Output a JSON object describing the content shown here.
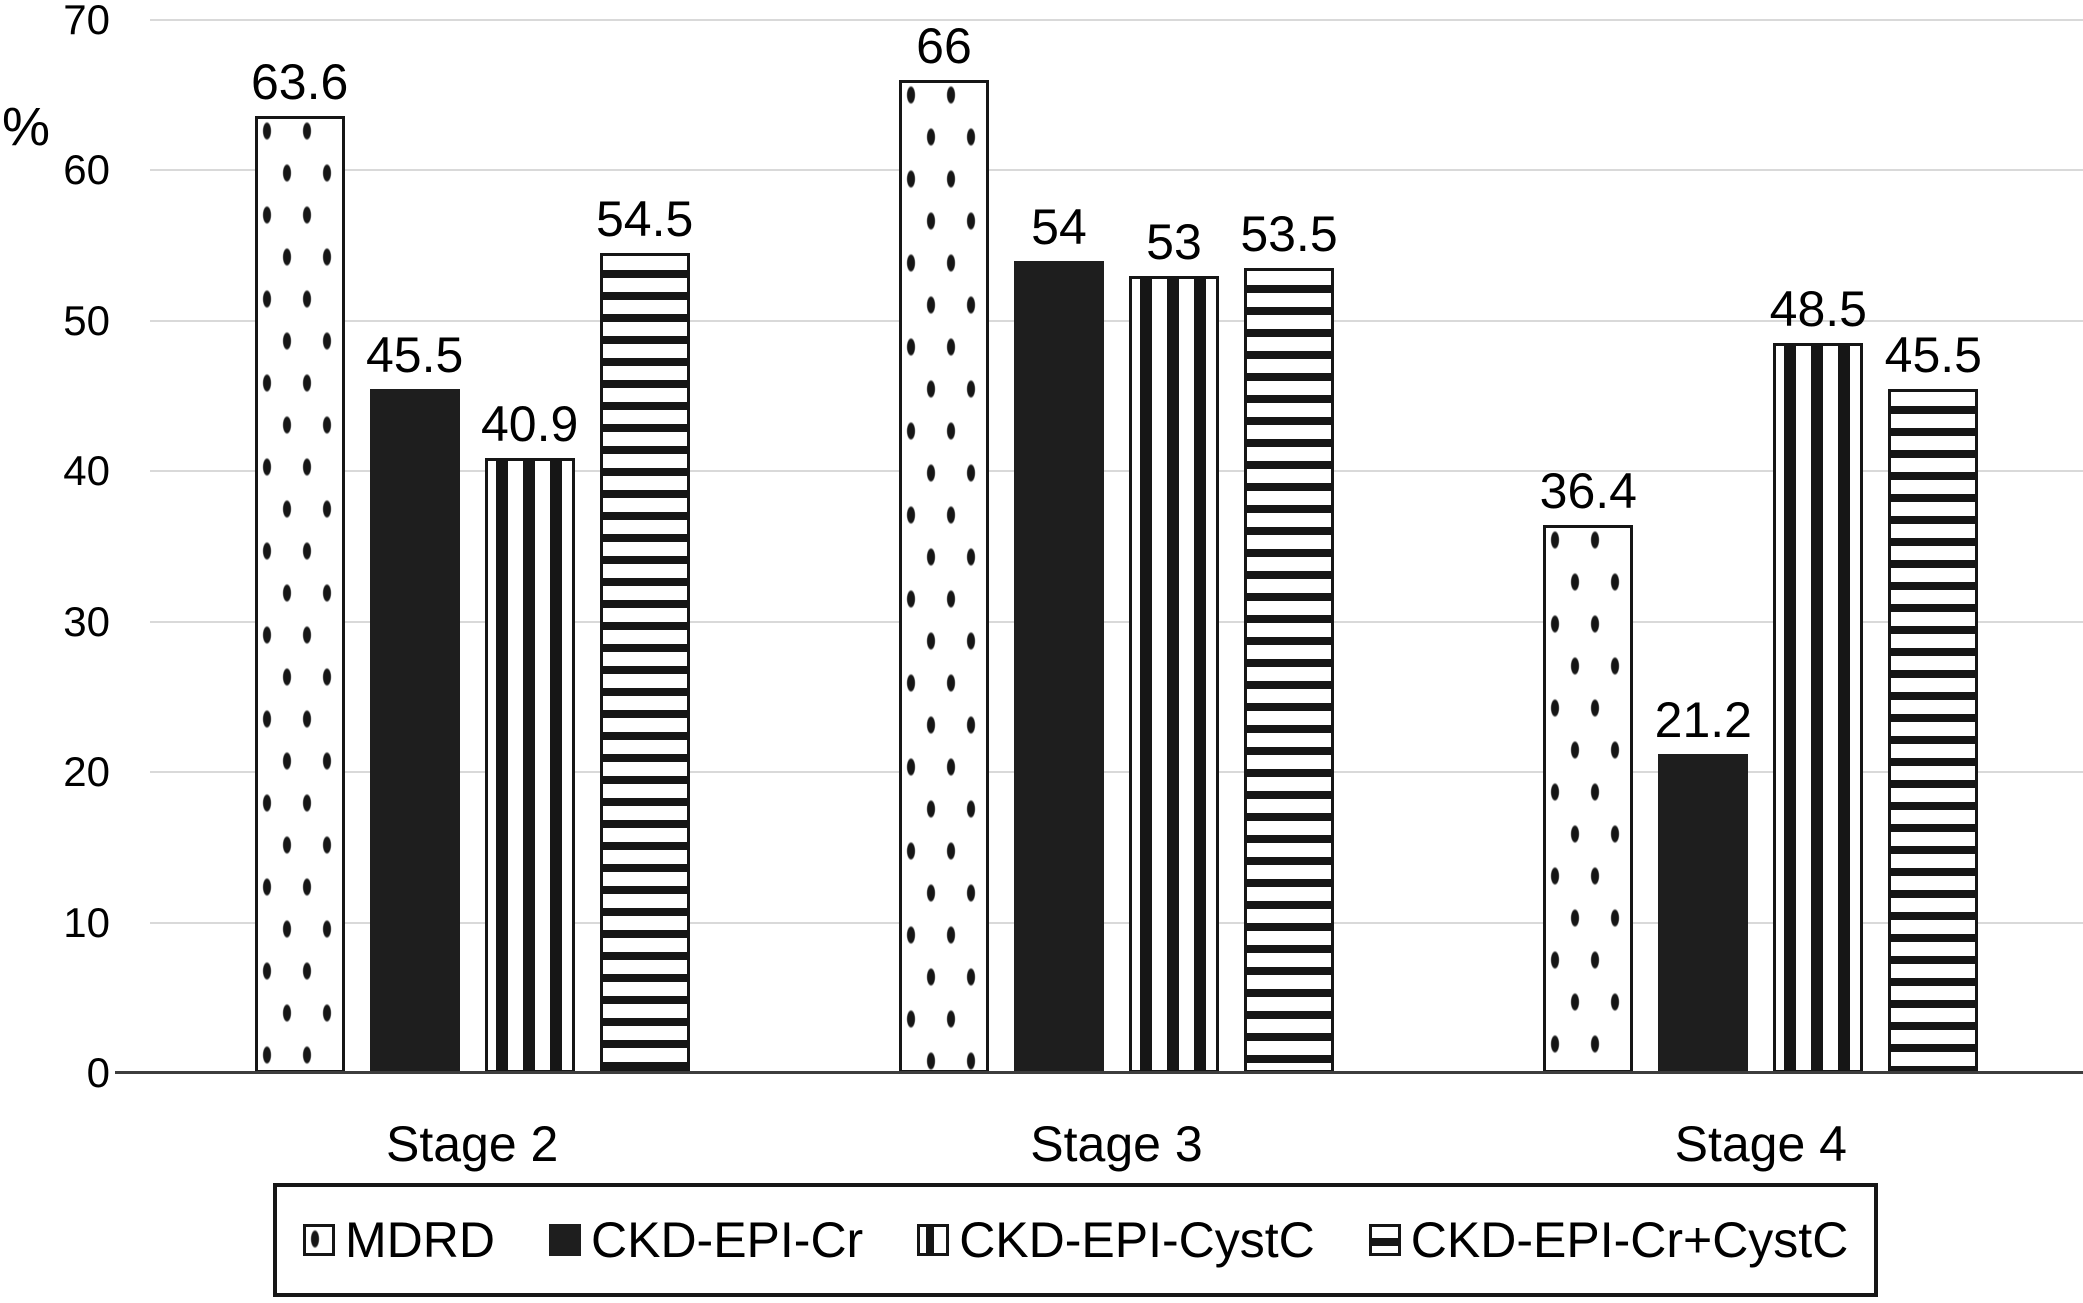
{
  "chart_data": {
    "type": "bar",
    "title": "",
    "xlabel": "",
    "ylabel": "%",
    "ylim": [
      0,
      70
    ],
    "yticks": [
      0,
      10,
      20,
      30,
      40,
      50,
      60,
      70
    ],
    "grid": "horizontal-gridlines",
    "legend_position": "bottom",
    "categories": [
      "Stage 2",
      "Stage 3",
      "Stage 4"
    ],
    "series": [
      {
        "name": "MDRD",
        "pattern": "dots",
        "values": [
          63.6,
          66,
          36.4
        ],
        "labels": [
          "63.6",
          "66",
          "36.4"
        ]
      },
      {
        "name": "CKD-EPI-Cr",
        "pattern": "solid",
        "values": [
          45.5,
          54,
          21.2
        ],
        "labels": [
          "45.5",
          "54",
          "21.2"
        ]
      },
      {
        "name": "CKD-EPI-CystC",
        "pattern": "vertical-stripes",
        "values": [
          40.9,
          53,
          48.5
        ],
        "labels": [
          "40.9",
          "53",
          "48.5"
        ]
      },
      {
        "name": "CKD-EPI-Cr+CystC",
        "pattern": "horizontal-stripes",
        "values": [
          54.5,
          53.5,
          45.5
        ],
        "labels": [
          "54.5",
          "53.5",
          "45.5"
        ]
      }
    ],
    "colors": {
      "bar_dark": "#1e1e1e",
      "pattern_ink": "#161616",
      "gridline": "#d9d9d9",
      "axis_line": "#3d3d3d",
      "background": "#ffffff",
      "text": "#000000"
    }
  }
}
